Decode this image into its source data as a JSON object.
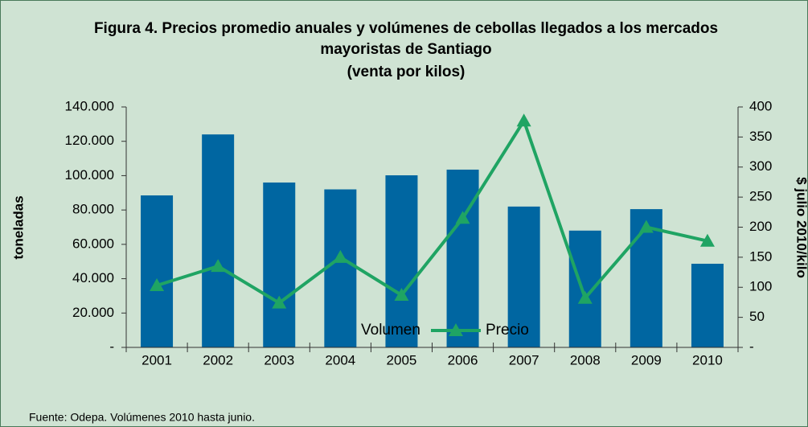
{
  "chart_data": {
    "type": "bar_line",
    "title": [
      "Figura 4. Precios promedio anuales y volúmenes de cebollas llegados a los mercados",
      "mayoristas de Santiago"
    ],
    "subtitle": "(venta por kilos)",
    "ylabel": "toneladas",
    "y2label": "$ julio 2010/kilo",
    "source": "Fuente: Odepa. Volúmenes 2010 hasta junio.",
    "categories": [
      "2001",
      "2002",
      "2003",
      "2004",
      "2005",
      "2006",
      "2007",
      "2008",
      "2009",
      "2010"
    ],
    "series": [
      {
        "name": "Volumen",
        "color": "#0066a1",
        "type": "bar",
        "values": [
          88500,
          124000,
          96000,
          92000,
          100200,
          103500,
          82000,
          68000,
          80500,
          48700
        ]
      },
      {
        "name": "Precio",
        "color": "#1fa463",
        "type": "line",
        "axis": "y2",
        "values": [
          103,
          135,
          74,
          150,
          87,
          215,
          377,
          82,
          200,
          177
        ]
      }
    ],
    "ylim": [
      0,
      140000
    ],
    "yticks": [
      {
        "value": 0,
        "label": "-"
      },
      {
        "value": 20000,
        "label": "20.000"
      },
      {
        "value": 40000,
        "label": "40.000"
      },
      {
        "value": 60000,
        "label": "60.000"
      },
      {
        "value": 80000,
        "label": "80.000"
      },
      {
        "value": 100000,
        "label": "100.000"
      },
      {
        "value": 120000,
        "label": "120.000"
      },
      {
        "value": 140000,
        "label": "140.000"
      }
    ],
    "y2lim": [
      0,
      400
    ],
    "y2ticks": [
      {
        "value": 0,
        "label": "-"
      },
      50,
      100,
      150,
      200,
      250,
      300,
      350,
      400
    ],
    "legend": "bottom",
    "grid": false
  }
}
